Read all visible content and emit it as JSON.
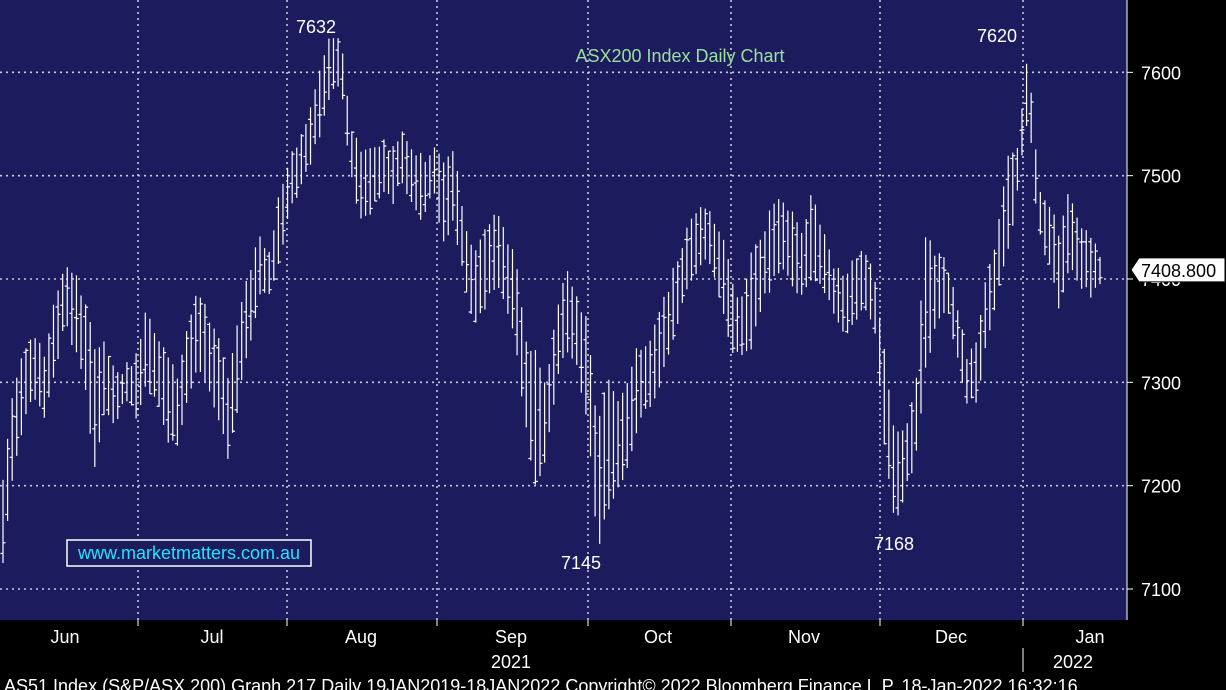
{
  "chart_data": {
    "type": "ohlc",
    "title": "ASX200 Index Daily Chart",
    "watermark": "www.marketmatters.com.au",
    "footer": "AS51 Index (S&P/ASX 200) Graph 217  Daily 19JAN2019-18JAN2022 Copyright© 2022 Bloomberg Finance L.P.  18-Jan-2022 16:32:16",
    "last_price_label": "7408.800",
    "last_price": 7408.8,
    "ylim": [
      7070,
      7670
    ],
    "y_ticks": [
      7100,
      7200,
      7300,
      7400,
      7500,
      7600
    ],
    "y_tick_labels": [
      "7100",
      "7200",
      "7300",
      "7400",
      "7500",
      "7600"
    ],
    "x_month_labels": [
      "Jun",
      "Jul",
      "Aug",
      "Sep",
      "Oct",
      "Nov",
      "Dec",
      "Jan"
    ],
    "year_labels": [
      "2021",
      "2022"
    ],
    "annotations": [
      {
        "text": "7632",
        "value": 7632,
        "month": "Aug"
      },
      {
        "text": "7145",
        "value": 7145,
        "month": "Sep"
      },
      {
        "text": "7168",
        "value": 7168,
        "month": "Nov"
      },
      {
        "text": "7620",
        "value": 7620,
        "month": "Dec"
      }
    ],
    "grid": true,
    "colors": {
      "background": "#1b1b5e",
      "grid": "#c8c8dc",
      "bars": "#ffffff",
      "title": "#9be29b",
      "watermark": "#1ee6ff",
      "axis_bg": "#000000",
      "text": "#ffffff"
    },
    "anchors": [
      [
        7130,
        7200
      ],
      [
        7220,
        7290
      ],
      [
        7265,
        7330
      ],
      [
        7290,
        7340
      ],
      [
        7270,
        7320
      ],
      [
        7310,
        7370
      ],
      [
        7360,
        7410
      ],
      [
        7340,
        7400
      ],
      [
        7300,
        7370
      ],
      [
        7220,
        7330
      ],
      [
        7280,
        7330
      ],
      [
        7260,
        7300
      ],
      [
        7290,
        7310
      ],
      [
        7270,
        7320
      ],
      [
        7300,
        7370
      ],
      [
        7290,
        7340
      ],
      [
        7250,
        7320
      ],
      [
        7240,
        7300
      ],
      [
        7290,
        7350
      ],
      [
        7320,
        7380
      ],
      [
        7300,
        7360
      ],
      [
        7270,
        7340
      ],
      [
        7230,
        7300
      ],
      [
        7290,
        7360
      ],
      [
        7340,
        7400
      ],
      [
        7390,
        7440
      ],
      [
        7390,
        7420
      ],
      [
        7420,
        7480
      ],
      [
        7480,
        7510
      ],
      [
        7490,
        7530
      ],
      [
        7520,
        7560
      ],
      [
        7550,
        7600
      ],
      [
        7590,
        7632
      ],
      [
        7590,
        7620
      ],
      [
        7500,
        7540
      ],
      [
        7460,
        7520
      ],
      [
        7470,
        7520
      ],
      [
        7490,
        7530
      ],
      [
        7480,
        7520
      ],
      [
        7500,
        7540
      ],
      [
        7470,
        7520
      ],
      [
        7460,
        7510
      ],
      [
        7490,
        7520
      ],
      [
        7440,
        7510
      ],
      [
        7460,
        7520
      ],
      [
        7400,
        7450
      ],
      [
        7360,
        7420
      ],
      [
        7380,
        7440
      ],
      [
        7400,
        7460
      ],
      [
        7380,
        7440
      ],
      [
        7340,
        7410
      ],
      [
        7260,
        7340
      ],
      [
        7200,
        7320
      ],
      [
        7230,
        7290
      ],
      [
        7310,
        7370
      ],
      [
        7340,
        7400
      ],
      [
        7320,
        7380
      ],
      [
        7270,
        7350
      ],
      [
        7145,
        7250
      ],
      [
        7180,
        7300
      ],
      [
        7200,
        7280
      ],
      [
        7220,
        7300
      ],
      [
        7270,
        7330
      ],
      [
        7280,
        7330
      ],
      [
        7300,
        7360
      ],
      [
        7340,
        7390
      ],
      [
        7370,
        7420
      ],
      [
        7400,
        7450
      ],
      [
        7420,
        7470
      ],
      [
        7420,
        7460
      ],
      [
        7380,
        7440
      ],
      [
        7340,
        7400
      ],
      [
        7330,
        7370
      ],
      [
        7340,
        7420
      ],
      [
        7380,
        7430
      ],
      [
        7400,
        7470
      ],
      [
        7420,
        7470
      ],
      [
        7400,
        7460
      ],
      [
        7390,
        7440
      ],
      [
        7410,
        7480
      ],
      [
        7400,
        7440
      ],
      [
        7370,
        7410
      ],
      [
        7350,
        7400
      ],
      [
        7360,
        7410
      ],
      [
        7380,
        7420
      ],
      [
        7360,
        7400
      ],
      [
        7240,
        7320
      ],
      [
        7168,
        7240
      ],
      [
        7200,
        7250
      ],
      [
        7230,
        7290
      ],
      [
        7320,
        7440
      ],
      [
        7360,
        7420
      ],
      [
        7380,
        7410
      ],
      [
        7330,
        7370
      ],
      [
        7280,
        7320
      ],
      [
        7290,
        7340
      ],
      [
        7350,
        7400
      ],
      [
        7390,
        7440
      ],
      [
        7430,
        7510
      ],
      [
        7490,
        7520
      ],
      [
        7570,
        7620
      ],
      [
        7450,
        7480
      ],
      [
        7420,
        7470
      ],
      [
        7380,
        7440
      ],
      [
        7420,
        7480
      ],
      [
        7400,
        7450
      ],
      [
        7390,
        7440
      ],
      [
        7400,
        7420
      ]
    ]
  }
}
